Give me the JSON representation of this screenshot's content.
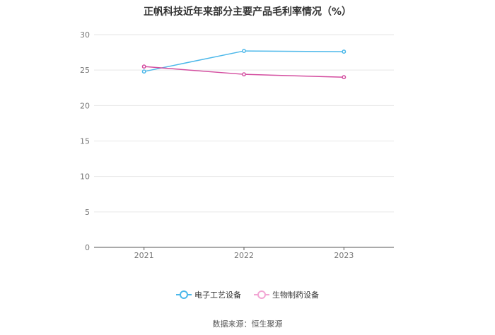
{
  "chart_data": {
    "type": "line",
    "title": "正帆科技近年来部分主要产品毛利率情况（%）",
    "categories": [
      "2021",
      "2022",
      "2023"
    ],
    "series": [
      {
        "name": "电子工艺设备",
        "values": [
          24.8,
          27.7,
          27.6
        ],
        "color": "#4cb8ea"
      },
      {
        "name": "生物制药设备",
        "values": [
          25.5,
          24.4,
          24.0
        ],
        "color": "#d44ea0"
      }
    ],
    "ylim": [
      0,
      30
    ],
    "yticks": [
      0,
      5,
      10,
      15,
      20,
      25,
      30
    ],
    "grid": true,
    "legend_position": "bottom"
  },
  "source_text": "数据来源：恒生聚源"
}
